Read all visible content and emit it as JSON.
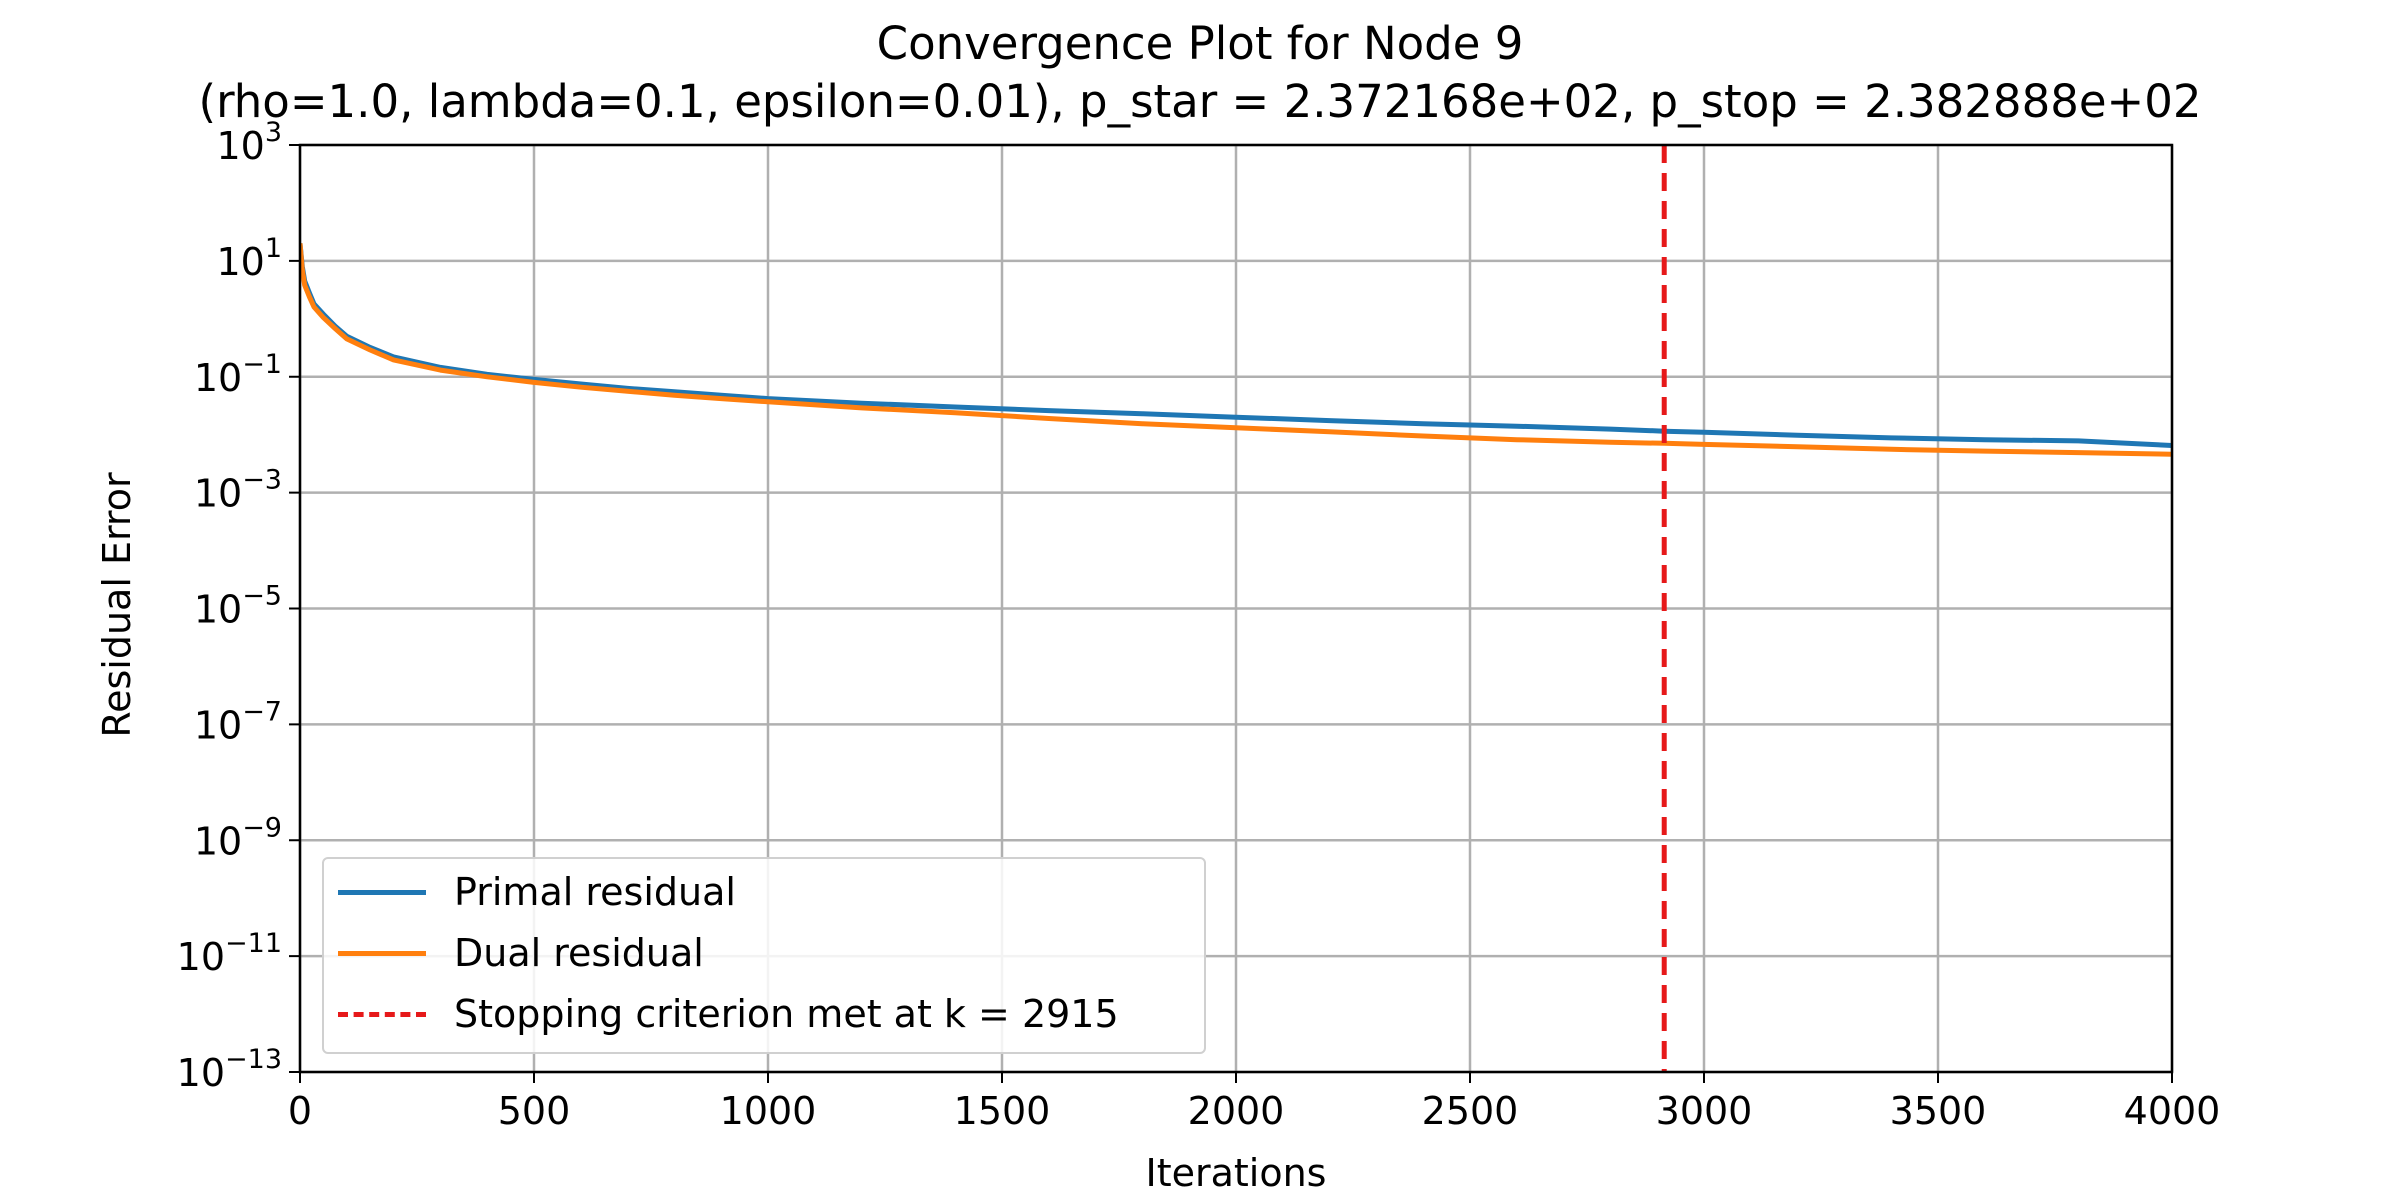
{
  "chart_data": {
    "type": "line",
    "title": "Convergence Plot for Node 9",
    "subtitle": "(rho=1.0, lambda=0.1, epsilon=0.01), p_star = 2.372168e+02, p_stop = 2.382888e+02",
    "xlabel": "Iterations",
    "ylabel": "Residual Error",
    "xlim": [
      0,
      4000
    ],
    "ylim": [
      1e-13,
      1000
    ],
    "yscale": "log",
    "grid": true,
    "legend_position": "lower-left",
    "xticks": [
      0,
      500,
      1000,
      1500,
      2000,
      2500,
      3000,
      3500,
      4000
    ],
    "yticks": [
      {
        "exp": 3
      },
      {
        "exp": 1
      },
      {
        "exp": -1
      },
      {
        "exp": -3
      },
      {
        "exp": -5
      },
      {
        "exp": -7
      },
      {
        "exp": -9
      },
      {
        "exp": -11
      },
      {
        "exp": -13
      }
    ],
    "series": [
      {
        "name": "Primal residual",
        "color": "#1f77b4",
        "x": [
          0,
          5,
          10,
          20,
          30,
          50,
          75,
          100,
          150,
          200,
          300,
          400,
          500,
          600,
          700,
          800,
          900,
          1000,
          1200,
          1400,
          1600,
          1800,
          2000,
          2200,
          2400,
          2600,
          2800,
          2915,
          3000,
          3200,
          3400,
          3600,
          3800,
          4000
        ],
        "y": [
          20,
          8,
          4.5,
          2.8,
          1.8,
          1.2,
          0.75,
          0.5,
          0.32,
          0.22,
          0.145,
          0.11,
          0.09,
          0.075,
          0.063,
          0.055,
          0.048,
          0.042,
          0.035,
          0.03,
          0.026,
          0.023,
          0.02,
          0.0175,
          0.0155,
          0.014,
          0.0125,
          0.0115,
          0.011,
          0.0098,
          0.0088,
          0.0082,
          0.0078,
          0.0065
        ]
      },
      {
        "name": "Dual residual",
        "color": "#ff7f0e",
        "x": [
          0,
          5,
          10,
          20,
          30,
          50,
          75,
          100,
          150,
          200,
          300,
          400,
          500,
          600,
          700,
          800,
          900,
          1000,
          1200,
          1400,
          1600,
          1800,
          2000,
          2200,
          2400,
          2600,
          2800,
          2915,
          3000,
          3200,
          3400,
          3600,
          3800,
          4000
        ],
        "y": [
          20,
          7,
          3.8,
          2.4,
          1.6,
          1.05,
          0.68,
          0.45,
          0.29,
          0.195,
          0.13,
          0.1,
          0.08,
          0.066,
          0.056,
          0.048,
          0.042,
          0.037,
          0.029,
          0.024,
          0.019,
          0.0155,
          0.0132,
          0.0112,
          0.0095,
          0.0082,
          0.0074,
          0.0071,
          0.0068,
          0.0062,
          0.0056,
          0.0052,
          0.0049,
          0.0046
        ]
      }
    ],
    "stop_line": {
      "name": "Stopping criterion met at k = 2915",
      "x": 2915,
      "color": "#e6191a"
    }
  },
  "colors": {
    "grid": "#b0b0b0",
    "axes": "#000000"
  }
}
